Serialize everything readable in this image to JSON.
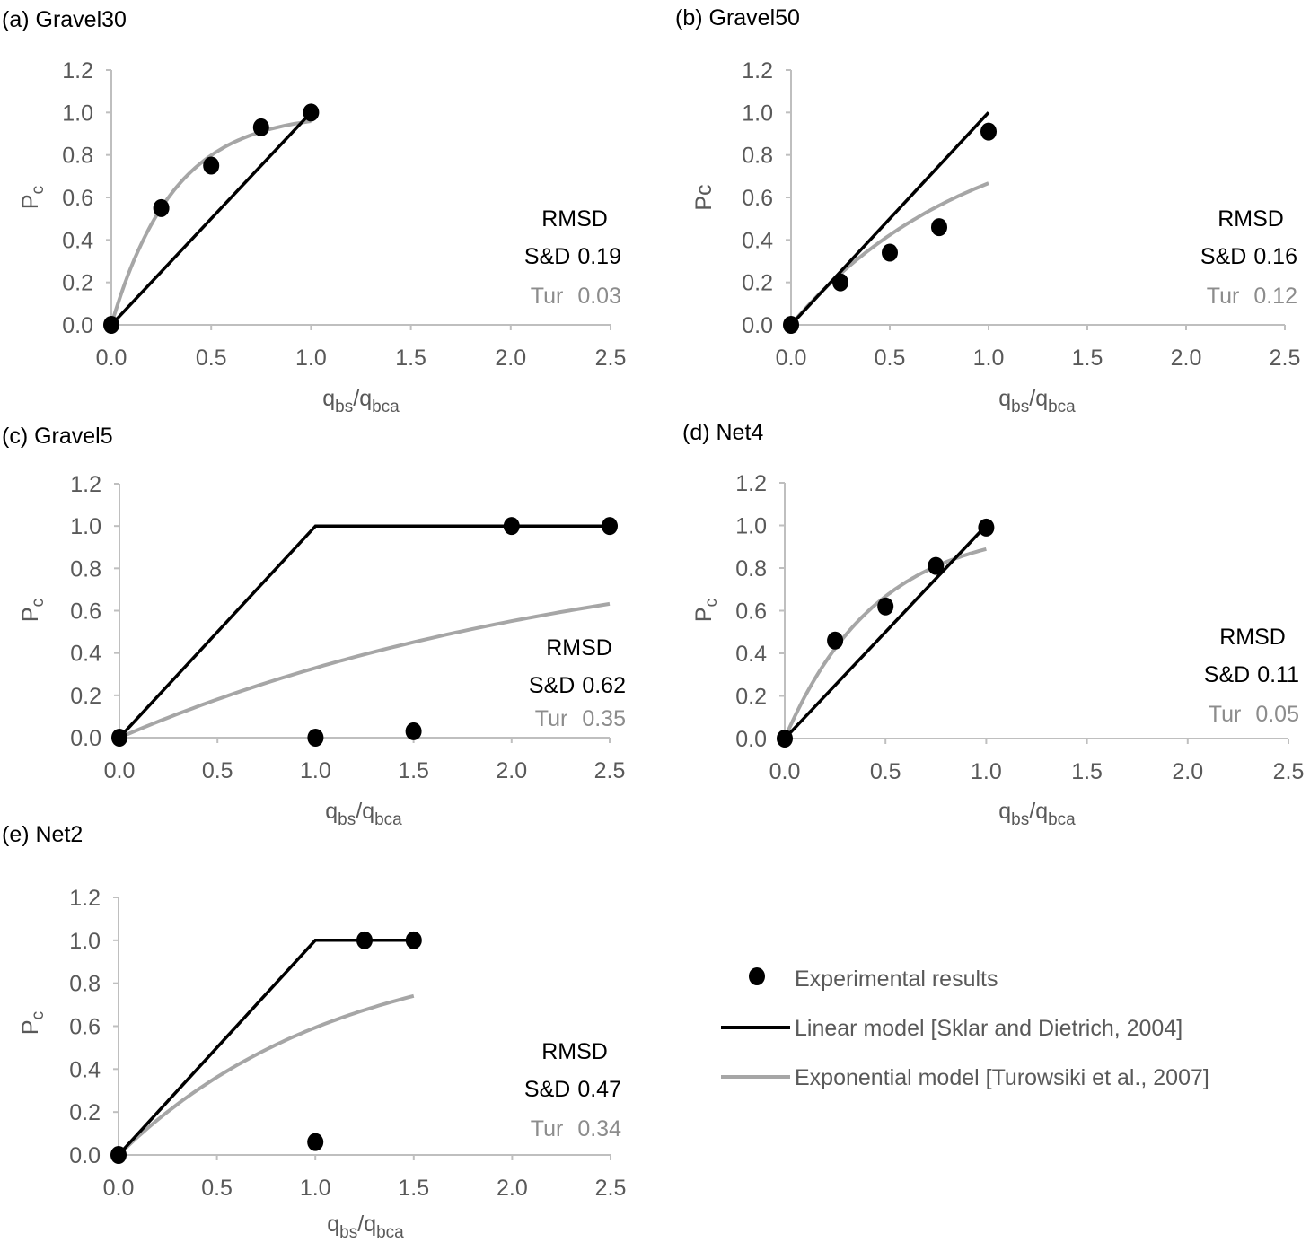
{
  "colors": {
    "points": "#000000",
    "linear": "#000000",
    "exponential": "#a6a6a6",
    "axis": "#bfbfbf",
    "tick_text": "#595959",
    "tur_text": "#8c8c8c"
  },
  "legend": {
    "items": [
      {
        "label": "Experimental results",
        "marker": "dot"
      },
      {
        "label": "Linear model [Sklar and Dietrich, 2004]",
        "marker": "line-black"
      },
      {
        "label": "Exponential model [Turowsiki et al., 2007]",
        "marker": "line-gray"
      }
    ]
  },
  "chart_data": [
    {
      "id": "a",
      "type": "scatter",
      "title": "(a) Gravel30",
      "xlabel": {
        "base": "q",
        "sub1": "bs",
        "sep": "/",
        "base2": "q",
        "sub2": "bca"
      },
      "ylabel": {
        "base": "P",
        "sub": "c"
      },
      "xlim": [
        0,
        2.5
      ],
      "ylim": [
        0,
        1.2
      ],
      "xticks": [
        "0.0",
        "0.5",
        "1.0",
        "1.5",
        "2.0",
        "2.5"
      ],
      "yticks": [
        "0.0",
        "0.2",
        "0.4",
        "0.6",
        "0.8",
        "1.0",
        "1.2"
      ],
      "grid": false,
      "series": [
        {
          "name": "Experimental results",
          "kind": "points",
          "x": [
            0,
            0.25,
            0.5,
            0.75,
            1.0
          ],
          "y": [
            0,
            0.55,
            0.75,
            0.93,
            1.0
          ]
        },
        {
          "name": "Linear model",
          "kind": "line",
          "x": [
            0,
            1.0
          ],
          "y": [
            0,
            1.0
          ]
        },
        {
          "name": "Exponential model",
          "kind": "curve",
          "k": 3.2,
          "xmax": 1.0
        }
      ],
      "rmsd": {
        "heading": "RMSD",
        "sd_label": "S&D",
        "sd_value": "0.19",
        "tur_label": "Tur",
        "tur_value": "0.03"
      }
    },
    {
      "id": "b",
      "type": "scatter",
      "title": "(b) Gravel50",
      "xlabel": {
        "base": "q",
        "sub1": "bs",
        "sep": "/",
        "base2": "q",
        "sub2": "bca"
      },
      "ylabel": {
        "base": "Pc",
        "sub": ""
      },
      "xlim": [
        0,
        2.5
      ],
      "ylim": [
        0,
        1.2
      ],
      "xticks": [
        "0.0",
        "0.5",
        "1.0",
        "1.5",
        "2.0",
        "2.5"
      ],
      "yticks": [
        "0.0",
        "0.2",
        "0.4",
        "0.6",
        "0.8",
        "1.0",
        "1.2"
      ],
      "grid": false,
      "series": [
        {
          "name": "Experimental results",
          "kind": "points",
          "x": [
            0,
            0.25,
            0.5,
            0.75,
            1.0
          ],
          "y": [
            0,
            0.2,
            0.34,
            0.46,
            0.91
          ]
        },
        {
          "name": "Linear model",
          "kind": "line",
          "x": [
            0,
            1.0
          ],
          "y": [
            0,
            1.0
          ]
        },
        {
          "name": "Exponential model",
          "kind": "curve",
          "k": 1.1,
          "xmax": 1.0
        }
      ],
      "rmsd": {
        "heading": "RMSD",
        "sd_label": "S&D",
        "sd_value": "0.16",
        "tur_label": "Tur",
        "tur_value": "0.12"
      }
    },
    {
      "id": "c",
      "type": "scatter",
      "title": "(c) Gravel5",
      "xlabel": {
        "base": "q",
        "sub1": "bs",
        "sep": "/",
        "base2": "q",
        "sub2": "bca"
      },
      "ylabel": {
        "base": "P",
        "sub": "c"
      },
      "xlim": [
        0,
        2.5
      ],
      "ylim": [
        0,
        1.2
      ],
      "xticks": [
        "0.0",
        "0.5",
        "1.0",
        "1.5",
        "2.0",
        "2.5"
      ],
      "yticks": [
        "0.0",
        "0.2",
        "0.4",
        "0.6",
        "0.8",
        "1.0",
        "1.2"
      ],
      "grid": false,
      "series": [
        {
          "name": "Experimental results",
          "kind": "points",
          "x": [
            0,
            1.0,
            1.5,
            2.0,
            2.5
          ],
          "y": [
            0,
            0.0,
            0.03,
            1.0,
            1.0
          ]
        },
        {
          "name": "Linear model",
          "kind": "line",
          "x": [
            0,
            1.0,
            2.5
          ],
          "y": [
            0,
            1.0,
            1.0
          ]
        },
        {
          "name": "Exponential model",
          "kind": "curve",
          "k": 0.4,
          "xmax": 2.5
        }
      ],
      "rmsd": {
        "heading": "RMSD",
        "sd_label": "S&D",
        "sd_value": "0.62",
        "tur_label": "Tur",
        "tur_value": "0.35"
      }
    },
    {
      "id": "d",
      "type": "scatter",
      "title": "(d)  Net4",
      "xlabel": {
        "base": "q",
        "sub1": "bs",
        "sep": "/",
        "base2": "q",
        "sub2": "bca"
      },
      "ylabel": {
        "base": "P",
        "sub": "c"
      },
      "xlim": [
        0,
        2.5
      ],
      "ylim": [
        0,
        1.2
      ],
      "xticks": [
        "0.0",
        "0.5",
        "1.0",
        "1.5",
        "2.0",
        "2.5"
      ],
      "yticks": [
        "0.0",
        "0.2",
        "0.4",
        "0.6",
        "0.8",
        "1.0",
        "1.2"
      ],
      "grid": false,
      "series": [
        {
          "name": "Experimental results",
          "kind": "points",
          "x": [
            0,
            0.25,
            0.5,
            0.75,
            1.0
          ],
          "y": [
            0,
            0.46,
            0.62,
            0.81,
            0.99
          ]
        },
        {
          "name": "Linear model",
          "kind": "line",
          "x": [
            0,
            1.0
          ],
          "y": [
            0,
            1.0
          ]
        },
        {
          "name": "Exponential model",
          "kind": "curve",
          "k": 2.2,
          "xmax": 1.0
        }
      ],
      "rmsd": {
        "heading": "RMSD",
        "sd_label": "S&D",
        "sd_value": "0.11",
        "tur_label": "Tur",
        "tur_value": "0.05"
      }
    },
    {
      "id": "e",
      "type": "scatter",
      "title": "(e) Net2",
      "xlabel": {
        "base": "q",
        "sub1": "bs",
        "sep": "/",
        "base2": "q",
        "sub2": "bca"
      },
      "ylabel": {
        "base": "P",
        "sub": "c"
      },
      "xlim": [
        0,
        2.5
      ],
      "ylim": [
        0,
        1.2
      ],
      "xticks": [
        "0.0",
        "0.5",
        "1.0",
        "1.5",
        "2.0",
        "2.5"
      ],
      "yticks": [
        "0.0",
        "0.2",
        "0.4",
        "0.6",
        "0.8",
        "1.0",
        "1.2"
      ],
      "grid": false,
      "series": [
        {
          "name": "Experimental results",
          "kind": "points",
          "x": [
            0,
            1.0,
            1.25,
            1.5
          ],
          "y": [
            0,
            0.06,
            1.0,
            1.0
          ]
        },
        {
          "name": "Linear model",
          "kind": "line",
          "x": [
            0,
            1.0,
            1.5
          ],
          "y": [
            0,
            1.0,
            1.0
          ]
        },
        {
          "name": "Exponential model",
          "kind": "curve",
          "k": 0.9,
          "xmax": 1.5
        }
      ],
      "rmsd": {
        "heading": "RMSD",
        "sd_label": "S&D",
        "sd_value": "0.47",
        "tur_label": "Tur",
        "tur_value": "0.34"
      }
    }
  ]
}
